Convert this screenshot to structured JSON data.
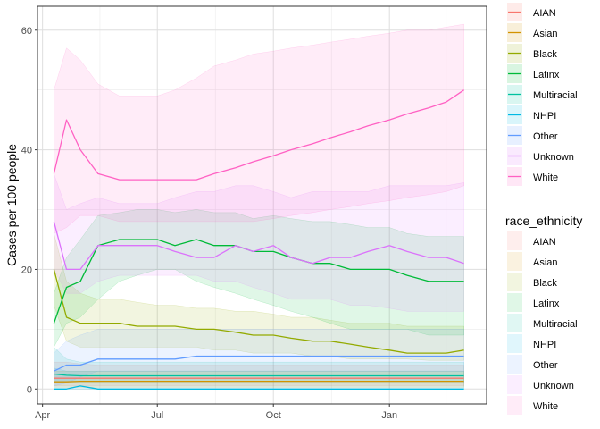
{
  "chart_data": {
    "type": "line",
    "xlabel": "",
    "ylabel": "Cases per 100 people",
    "ylim": [
      -2.5,
      64
    ],
    "x_ticks": [
      "Apr",
      "Jul",
      "Oct",
      "Jan"
    ],
    "y_ticks": [
      0,
      20,
      40,
      60
    ],
    "grid": true,
    "legend_position": "right",
    "legend_title_lines": "",
    "legend_title_bands": "race_ethnicity",
    "x_points": [
      "Apr 10",
      "Apr 20",
      "May 1",
      "May 15",
      "Jun 1",
      "Jun 15",
      "Jul 1",
      "Jul 15",
      "Aug 1",
      "Aug 15",
      "Sep 1",
      "Sep 15",
      "Oct 1",
      "Oct 15",
      "Nov 1",
      "Nov 15",
      "Dec 1",
      "Dec 15",
      "Jan 1",
      "Jan 15",
      "Feb 1",
      "Feb 15",
      "Mar 1"
    ],
    "series": [
      {
        "name": "AIAN",
        "color": "#F8766D",
        "values": [
          1.8,
          1.8,
          1.8,
          1.8,
          1.8,
          1.8,
          1.8,
          1.8,
          1.8,
          1.8,
          1.8,
          1.8,
          1.8,
          1.8,
          1.8,
          1.8,
          1.8,
          1.8,
          1.8,
          1.8,
          1.8,
          1.8,
          1.8
        ],
        "lower": [
          0.5,
          0.5,
          0.5,
          0.5,
          0.5,
          0.5,
          0.5,
          0.5,
          0.5,
          0.5,
          0.5,
          0.5,
          0.5,
          0.5,
          0.5,
          0.5,
          0.5,
          0.5,
          0.5,
          0.5,
          0.5,
          0.5,
          0.5
        ],
        "upper": [
          4.5,
          4.5,
          4.2,
          4,
          4,
          4,
          4,
          4,
          4,
          4,
          4,
          4,
          4,
          4,
          4,
          4,
          4,
          4,
          4,
          4,
          4,
          4,
          4
        ]
      },
      {
        "name": "Asian",
        "color": "#D39200",
        "values": [
          1.2,
          1.2,
          1.3,
          1.3,
          1.3,
          1.3,
          1.3,
          1.3,
          1.3,
          1.3,
          1.3,
          1.3,
          1.3,
          1.3,
          1.3,
          1.3,
          1.3,
          1.3,
          1.3,
          1.3,
          1.3,
          1.3,
          1.3
        ],
        "lower": [
          0.3,
          0.3,
          0.3,
          0.3,
          0.3,
          0.3,
          0.3,
          0.3,
          0.3,
          0.3,
          0.3,
          0.3,
          0.3,
          0.3,
          0.3,
          0.3,
          0.3,
          0.3,
          0.3,
          0.3,
          0.3,
          0.3,
          0.3
        ],
        "upper": [
          3,
          3,
          3,
          3,
          3,
          3,
          3,
          3,
          3,
          3,
          3,
          3,
          3,
          3,
          3,
          3,
          3,
          3,
          3,
          3,
          3,
          3,
          3
        ]
      },
      {
        "name": "Black",
        "color": "#93AA00",
        "values": [
          20,
          12,
          11,
          11,
          11,
          10.5,
          10.5,
          10.5,
          10,
          10,
          9.5,
          9,
          9,
          8.5,
          8,
          8,
          7.5,
          7,
          6.5,
          6,
          6,
          6,
          6.5
        ],
        "lower": [
          14,
          8,
          7,
          7,
          7,
          7,
          7,
          7,
          7,
          6.5,
          6.5,
          6,
          6,
          6,
          5.5,
          5.5,
          5,
          5,
          5,
          5,
          4.8,
          4.8,
          4.8
        ],
        "upper": [
          26,
          18,
          16,
          15,
          15,
          14.5,
          14,
          14,
          13.5,
          13.5,
          13,
          13,
          12.5,
          12,
          12,
          11.5,
          11,
          11,
          11,
          10.5,
          10.5,
          10.5,
          10.5
        ]
      },
      {
        "name": "Latinx",
        "color": "#00BA38",
        "values": [
          11,
          17,
          18,
          24,
          25,
          25,
          25,
          24,
          25,
          24,
          24,
          23,
          23,
          22,
          21,
          21,
          20,
          20,
          20,
          19,
          18,
          18,
          18
        ],
        "lower": [
          7,
          11,
          12,
          15,
          18,
          19,
          20,
          20,
          18,
          17,
          16,
          15,
          14,
          13,
          12,
          11,
          10,
          10,
          10,
          10,
          9,
          9,
          9
        ],
        "upper": [
          16,
          22,
          25,
          29,
          29.5,
          30,
          30,
          29.5,
          30,
          29.5,
          29.5,
          28.5,
          29,
          28.5,
          28,
          28,
          27.5,
          27,
          27,
          26,
          25.5,
          25.5,
          25.5
        ]
      },
      {
        "name": "Multiracial",
        "color": "#00C19F",
        "values": [
          2.5,
          2.3,
          2.2,
          2.2,
          2.2,
          2.2,
          2.2,
          2.2,
          2.2,
          2.2,
          2.2,
          2.2,
          2.2,
          2.2,
          2.2,
          2.2,
          2.2,
          2.2,
          2.2,
          2.2,
          2.2,
          2.2,
          2.2
        ],
        "lower": [
          1,
          1,
          1,
          1,
          1,
          1,
          1,
          1,
          1,
          1,
          1,
          1,
          1,
          1,
          1,
          1,
          1,
          1,
          1,
          1,
          1,
          1,
          1
        ],
        "upper": [
          7,
          5,
          4.5,
          4.5,
          4.5,
          4.5,
          4.5,
          4.5,
          4.5,
          4.5,
          4.5,
          4.5,
          4.5,
          4.5,
          4.5,
          4.5,
          4.5,
          4.5,
          4.5,
          4.5,
          4.5,
          4.5,
          4.5
        ]
      },
      {
        "name": "NHPI",
        "color": "#00B9E3",
        "values": [
          0,
          0,
          0.5,
          0,
          0,
          0,
          0,
          0,
          0,
          0,
          0,
          0,
          0,
          0,
          0,
          0,
          0,
          0,
          0,
          0,
          0,
          0,
          0
        ],
        "lower": [
          0,
          0,
          0,
          0,
          0,
          0,
          0,
          0,
          0,
          0,
          0,
          0,
          0,
          0,
          0,
          0,
          0,
          0,
          0,
          0,
          0,
          0,
          0
        ],
        "upper": [
          3.5,
          3,
          3,
          3,
          3,
          3,
          3,
          3,
          3,
          3,
          3,
          3,
          3,
          3,
          3,
          3,
          3,
          3,
          3,
          3,
          3,
          3,
          3
        ]
      },
      {
        "name": "Other",
        "color": "#619CFF",
        "values": [
          3,
          4,
          4,
          5,
          5,
          5,
          5,
          5,
          5.5,
          5.5,
          5.5,
          5.5,
          5.5,
          5.5,
          5.5,
          5.5,
          5.5,
          5.5,
          5.5,
          5.5,
          5.5,
          5.5,
          5.5
        ],
        "lower": [
          0.5,
          1,
          2,
          3,
          3,
          3,
          3,
          3,
          3,
          3,
          3,
          3,
          3,
          3,
          3,
          3,
          3,
          3,
          3,
          3,
          3,
          3,
          3
        ],
        "upper": [
          6,
          8,
          9,
          10,
          10,
          10,
          10,
          10,
          10,
          10,
          10,
          10,
          10,
          10,
          10,
          10,
          10,
          10,
          10,
          10,
          10,
          10,
          10
        ]
      },
      {
        "name": "Unknown",
        "color": "#DB72FB",
        "values": [
          28,
          20,
          20,
          24,
          24,
          24,
          24,
          23,
          22,
          22,
          24,
          23,
          24,
          22,
          21,
          22,
          22,
          23,
          24,
          23,
          22,
          22,
          21
        ],
        "lower": [
          20,
          16,
          16,
          18,
          19,
          19,
          19,
          19,
          19,
          18,
          18,
          17,
          16,
          15,
          15,
          15,
          14,
          14,
          13.5,
          13,
          13,
          13,
          13
        ],
        "upper": [
          36,
          30,
          31,
          32,
          31,
          31,
          31,
          32,
          33,
          33,
          34,
          34,
          33,
          32,
          33,
          33,
          33,
          33,
          34,
          34,
          34,
          34,
          34.5
        ]
      },
      {
        "name": "White",
        "color": "#FF61C3",
        "values": [
          36,
          45,
          40,
          36,
          35,
          35,
          35,
          35,
          35,
          36,
          37,
          38,
          39,
          40,
          41,
          42,
          43,
          44,
          45,
          46,
          47,
          48,
          50
        ],
        "lower": [
          26,
          27,
          29,
          29,
          28,
          28,
          28,
          28,
          28,
          28,
          28,
          28,
          28.5,
          29,
          29.5,
          30,
          30.5,
          31,
          31.5,
          32,
          32.5,
          33,
          34
        ],
        "upper": [
          50,
          57,
          55,
          51,
          49,
          49,
          49,
          50,
          52,
          54,
          55,
          56,
          56.5,
          57,
          57.5,
          58,
          58.5,
          59,
          59.5,
          60,
          60,
          60.5,
          61
        ]
      }
    ]
  }
}
